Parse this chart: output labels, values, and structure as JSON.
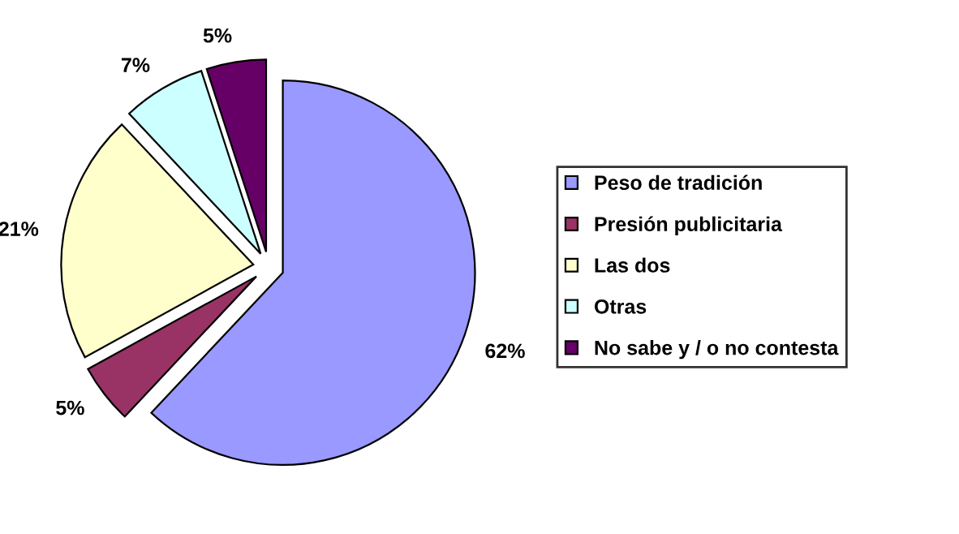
{
  "chart_data": {
    "type": "pie",
    "categories": [
      "Peso de tradición",
      "Presión publicitaria",
      "Las dos",
      "Otras",
      "No sabe y / o no contesta"
    ],
    "values": [
      62,
      5,
      21,
      7,
      5
    ],
    "colors": [
      "#9999ff",
      "#993366",
      "#ffffcc",
      "#ccffff",
      "#660066"
    ],
    "value_labels": [
      "62%",
      "5%",
      "21%",
      "7%",
      "5%"
    ],
    "legend": "right"
  }
}
